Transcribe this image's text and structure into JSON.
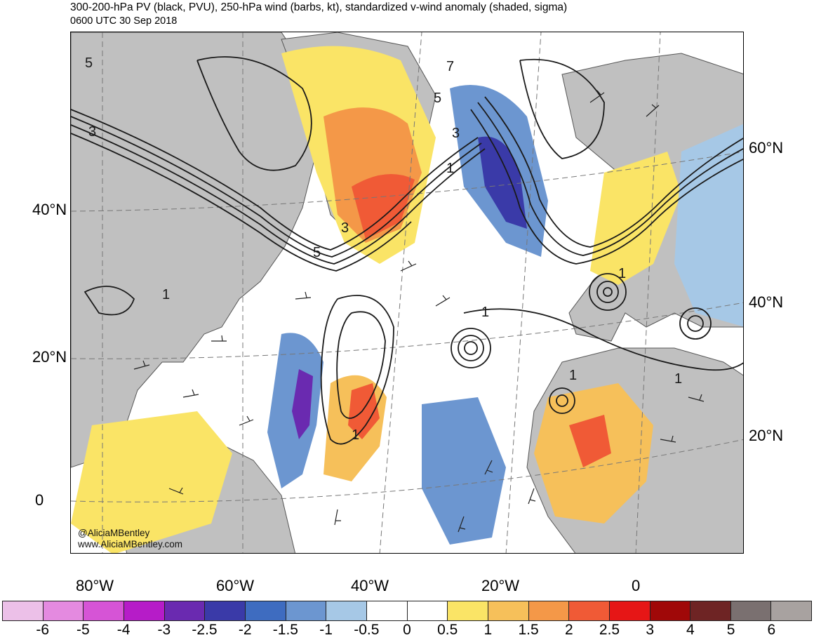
{
  "header": {
    "title": "300-200-hPa PV (black, PVU), 250-hPa wind (barbs, kt), standardized v-wind anomaly (shaded, sigma)",
    "valid_time": "0600 UTC 30 Sep 2018"
  },
  "watermark": {
    "handle": "@AliciaMBentley",
    "site": "www.AliciaMBentley.com"
  },
  "axes": {
    "lon_labels": [
      "80°W",
      "60°W",
      "40°W",
      "20°W",
      "0"
    ],
    "lat_labels_left": [
      "40°N",
      "20°N",
      "0"
    ],
    "lat_labels_right": [
      "60°N",
      "40°N",
      "20°N"
    ]
  },
  "contour_labels": [
    "5",
    "3",
    "7",
    "5",
    "3",
    "1",
    "3",
    "5",
    "1",
    "1",
    "1",
    "1",
    "1",
    "1"
  ],
  "colorbar": {
    "colors": [
      "#ecc0e8",
      "#e48ae0",
      "#d654d6",
      "#b61cc8",
      "#6a2ab0",
      "#3a3aa8",
      "#3e6cc0",
      "#6c96d0",
      "#a6c8e6",
      "#ffffff",
      "#ffffff",
      "#fae466",
      "#f6c05a",
      "#f49848",
      "#f05a36",
      "#e61616",
      "#a00808",
      "#6e2424",
      "#7a7070",
      "#a8a2a0"
    ],
    "tick_labels": [
      "-6",
      "-5",
      "-4",
      "-3",
      "-2.5",
      "-2",
      "-1.5",
      "-1",
      "-0.5",
      "0",
      "0.5",
      "1",
      "1.5",
      "2",
      "2.5",
      "3",
      "4",
      "5",
      "6"
    ]
  },
  "map_colors": {
    "land": "#c0c0c0",
    "ocean": "#ffffff",
    "coast": "#555555",
    "contour": "#1a1a1a",
    "grid": "#777777"
  }
}
